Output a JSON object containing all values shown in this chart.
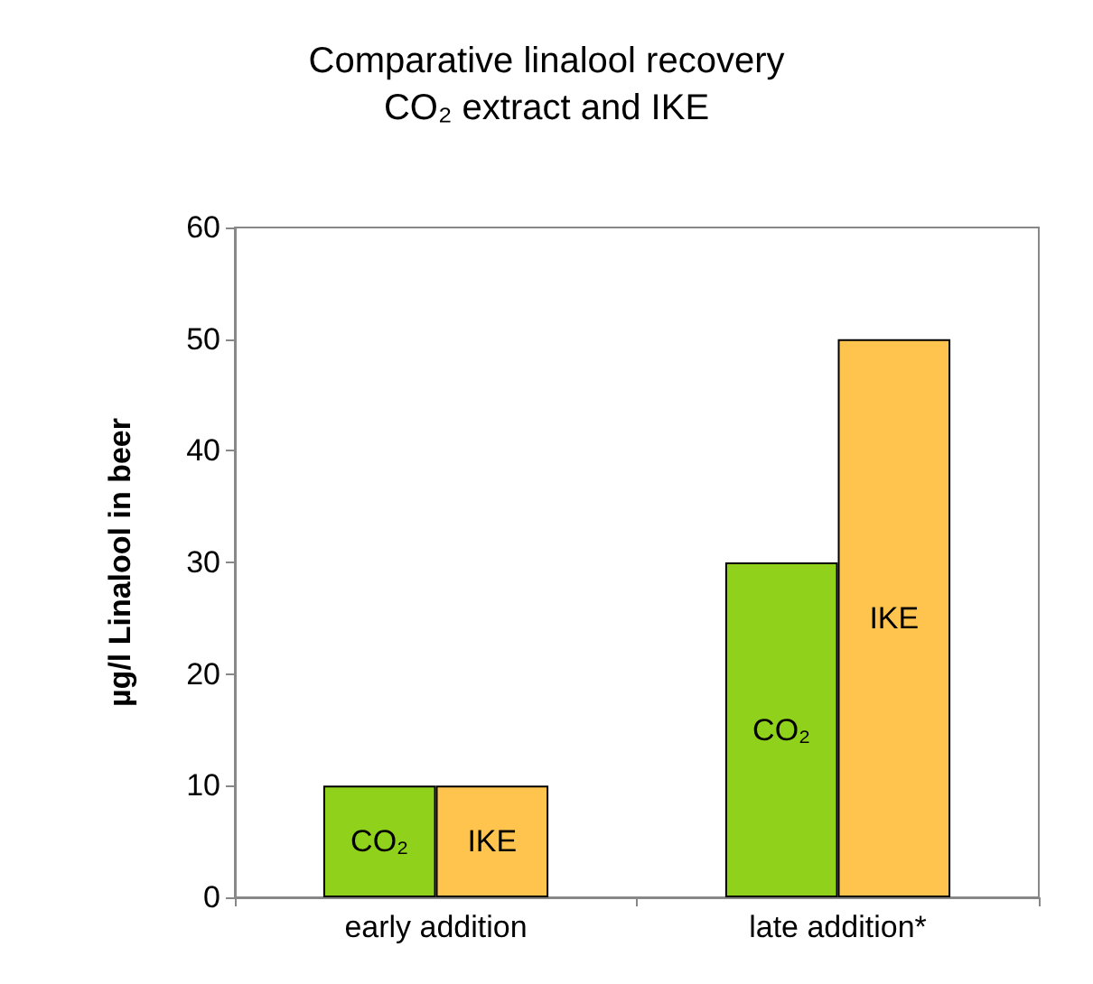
{
  "chart_data": {
    "type": "bar",
    "title": "Comparative linalool recovery\nCO₂ extract and IKE",
    "ylabel": "µg/l Linalool in beer",
    "categories": [
      "early addition",
      "late addition*"
    ],
    "series": [
      {
        "name": "CO₂",
        "color": "#8fd11b",
        "values": [
          10,
          30
        ]
      },
      {
        "name": "IKE",
        "color": "#ffc44d",
        "values": [
          10,
          50
        ]
      }
    ],
    "ylim": [
      0,
      60
    ],
    "yticks": [
      0,
      10,
      20,
      30,
      40,
      50,
      60
    ],
    "grid": false,
    "legend": false
  }
}
